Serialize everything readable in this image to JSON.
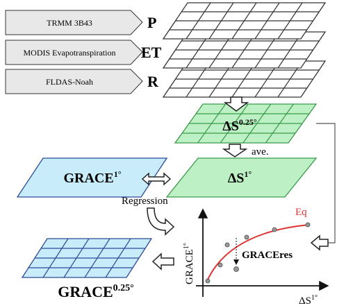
{
  "inputs": [
    {
      "label": "TRMM 3B43",
      "symbol": "P"
    },
    {
      "label": "MODIS Evapotranspiration",
      "symbol": "ET"
    },
    {
      "label": "FLDAS-Noah",
      "symbol": "R"
    }
  ],
  "delta_s_fine": {
    "base": "ΔS",
    "sup": "0.25°"
  },
  "ave_label": "ave.",
  "delta_s_coarse": {
    "base": "ΔS",
    "sup": "1°"
  },
  "grace_coarse": {
    "base": "GRACE",
    "sup": "1°"
  },
  "regression_label": "Regression",
  "grace_fine": {
    "base": "GRACE",
    "sup": "0.25°"
  },
  "plot": {
    "curve_label": "Eq",
    "residual_label": "GRACEres",
    "y_axis": {
      "base": "GRACE",
      "sup": "1°"
    },
    "x_axis": {
      "base": "ΔS",
      "sup": "1°"
    }
  }
}
